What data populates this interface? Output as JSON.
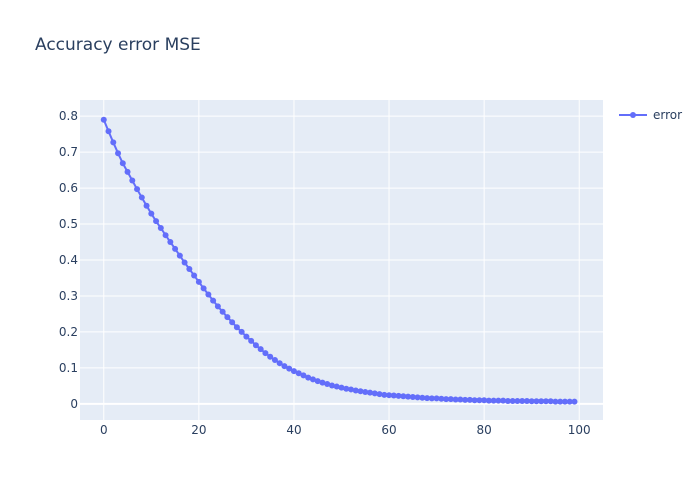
{
  "chart_data": {
    "type": "line",
    "title": "Accuracy error MSE",
    "xlabel": "",
    "ylabel": "",
    "xlim": [
      -5,
      105
    ],
    "ylim": [
      -0.045,
      0.845
    ],
    "x_ticks": [
      0,
      20,
      40,
      60,
      80,
      100
    ],
    "x_tick_labels": [
      "0",
      "20",
      "40",
      "60",
      "80",
      "100"
    ],
    "y_ticks": [
      0,
      0.1,
      0.2,
      0.3,
      0.4,
      0.5,
      0.6,
      0.7,
      0.8
    ],
    "y_tick_labels": [
      "0",
      "0.1",
      "0.2",
      "0.3",
      "0.4",
      "0.5",
      "0.6",
      "0.7",
      "0.8"
    ],
    "grid": true,
    "legend_position": "top-right",
    "background_color": "#E5ECF6",
    "series": [
      {
        "name": "error",
        "color": "#636EFA",
        "mode": "lines+markers",
        "x": [
          0,
          1,
          2,
          3,
          4,
          5,
          6,
          7,
          8,
          9,
          10,
          11,
          12,
          13,
          14,
          15,
          16,
          17,
          18,
          19,
          20,
          21,
          22,
          23,
          24,
          25,
          26,
          27,
          28,
          29,
          30,
          31,
          32,
          33,
          34,
          35,
          36,
          37,
          38,
          39,
          40,
          41,
          42,
          43,
          44,
          45,
          46,
          47,
          48,
          49,
          50,
          51,
          52,
          53,
          54,
          55,
          56,
          57,
          58,
          59,
          60,
          61,
          62,
          63,
          64,
          65,
          66,
          67,
          68,
          69,
          70,
          71,
          72,
          73,
          74,
          75,
          76,
          77,
          78,
          79,
          80,
          81,
          82,
          83,
          84,
          85,
          86,
          87,
          88,
          89,
          90,
          91,
          92,
          93,
          94,
          95,
          96,
          97,
          98,
          99
        ],
        "values": [
          0.79,
          0.758,
          0.727,
          0.697,
          0.669,
          0.645,
          0.621,
          0.597,
          0.574,
          0.551,
          0.529,
          0.508,
          0.489,
          0.469,
          0.45,
          0.431,
          0.412,
          0.393,
          0.375,
          0.357,
          0.339,
          0.321,
          0.304,
          0.287,
          0.271,
          0.256,
          0.241,
          0.227,
          0.213,
          0.2,
          0.187,
          0.175,
          0.163,
          0.152,
          0.141,
          0.131,
          0.122,
          0.113,
          0.105,
          0.098,
          0.091,
          0.085,
          0.079,
          0.073,
          0.068,
          0.063,
          0.059,
          0.055,
          0.051,
          0.048,
          0.045,
          0.042,
          0.04,
          0.037,
          0.035,
          0.033,
          0.031,
          0.029,
          0.027,
          0.025,
          0.024,
          0.023,
          0.022,
          0.021,
          0.02,
          0.019,
          0.018,
          0.017,
          0.016,
          0.015,
          0.015,
          0.014,
          0.013,
          0.013,
          0.012,
          0.012,
          0.011,
          0.011,
          0.01,
          0.01,
          0.01,
          0.009,
          0.009,
          0.009,
          0.009,
          0.008,
          0.008,
          0.008,
          0.008,
          0.008,
          0.007,
          0.007,
          0.007,
          0.007,
          0.007,
          0.006,
          0.006,
          0.006,
          0.006,
          0.006
        ]
      }
    ]
  }
}
